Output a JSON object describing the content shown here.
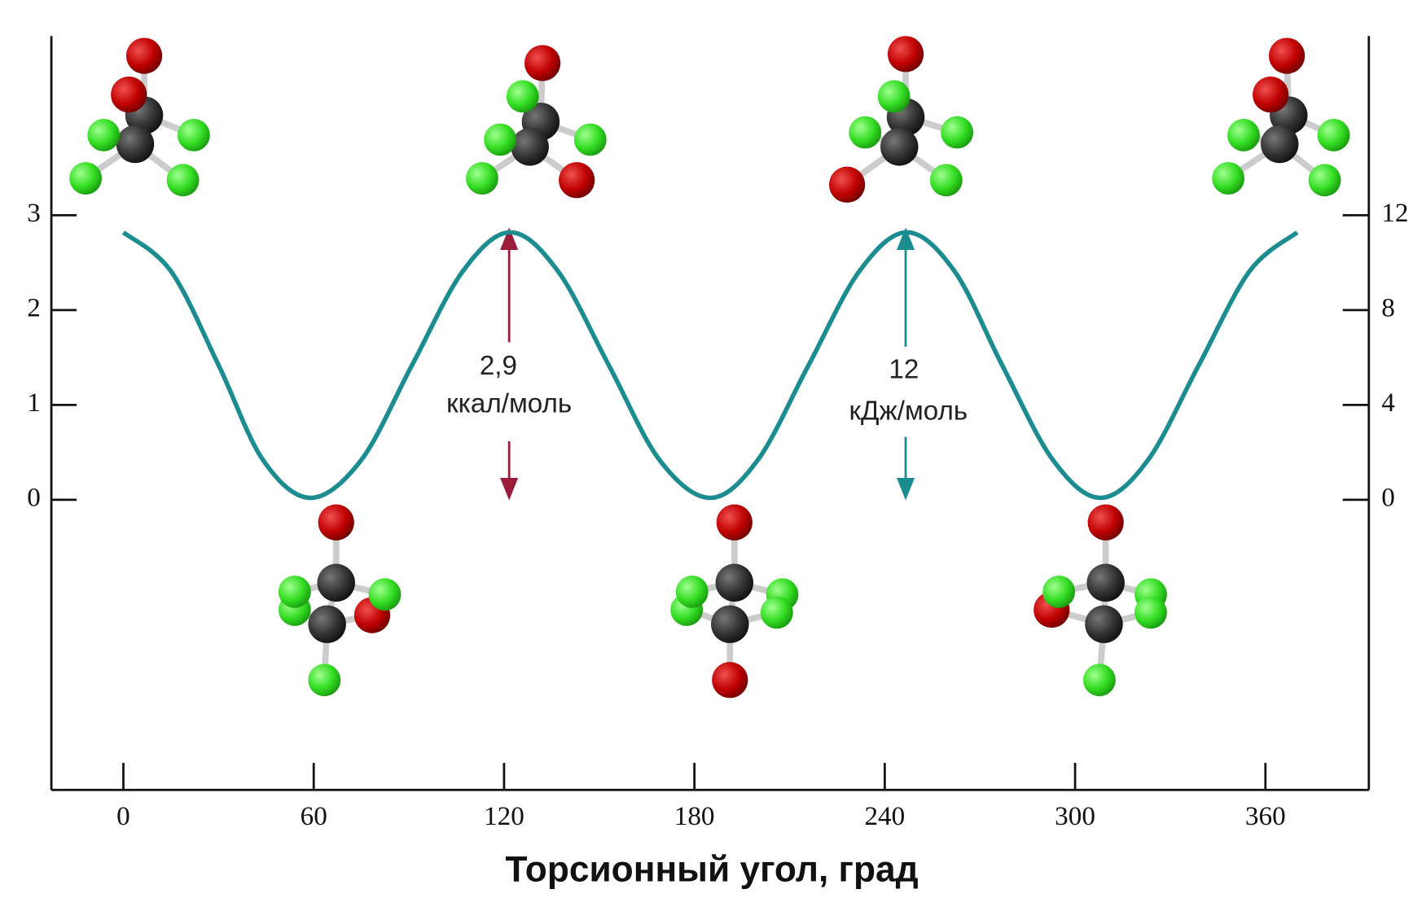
{
  "chart_data": {
    "type": "line",
    "x_label": "Торсионный угол, град",
    "x": [
      0,
      15,
      30,
      44,
      59,
      75,
      91,
      107,
      122,
      137,
      153,
      169,
      185,
      200,
      216,
      232,
      247,
      262,
      277,
      293,
      308,
      323,
      339,
      355,
      370
    ],
    "values": [
      2.82,
      2.41,
      1.42,
      0.42,
      0.02,
      0.42,
      1.42,
      2.41,
      2.82,
      2.41,
      1.42,
      0.42,
      0.02,
      0.42,
      1.42,
      2.41,
      2.82,
      2.41,
      1.42,
      0.42,
      0.02,
      0.42,
      1.42,
      2.41,
      2.82
    ],
    "color": "#1b8c8f",
    "xlim": [
      -22.7,
      392.6
    ],
    "xticks": [
      0,
      60,
      120,
      180,
      240,
      300,
      360
    ],
    "ylim": [
      -3.06,
      4.89
    ],
    "yticks": [
      0,
      1,
      2,
      3
    ],
    "y2lim": [
      -12.24,
      19.56
    ],
    "y2ticks": [
      0,
      4,
      8,
      12
    ],
    "annotations": [
      {
        "lines": [
          "2,9",
          "ккал/моль"
        ],
        "color": "#9b1b3b"
      },
      {
        "lines": [
          "12",
          "кДж/моль"
        ],
        "color": "#1b8c8f"
      }
    ]
  }
}
